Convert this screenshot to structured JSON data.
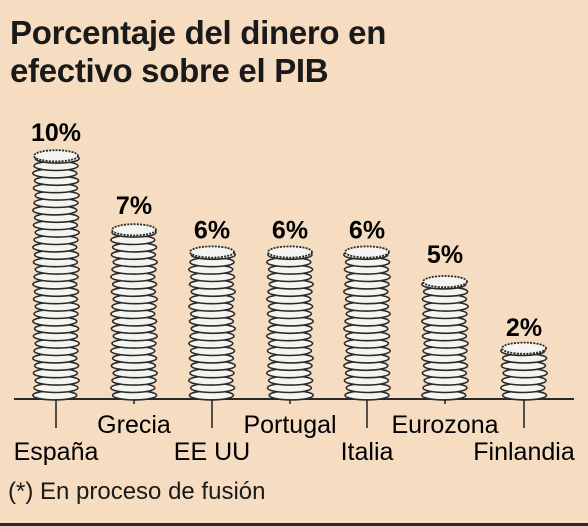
{
  "title_line1": "Porcentaje del dinero en",
  "title_line2": "efectivo sobre el PIB",
  "footnote": "(*) En proceso de fusión",
  "colors": {
    "background": "#f6dcc0",
    "coin_fill": "#f4f4f0",
    "coin_stroke": "#2a2a2a"
  },
  "chart_data": {
    "type": "bar",
    "categories": [
      "España",
      "Grecia",
      "EE UU",
      "Portugal",
      "Italia",
      "Eurozona",
      "Finlandia"
    ],
    "values": [
      10,
      7,
      6,
      6,
      6,
      5,
      2
    ],
    "value_labels": [
      "10%",
      "7%",
      "6%",
      "6%",
      "6%",
      "5%",
      "2%"
    ],
    "ylim": [
      0,
      10
    ],
    "grid": false,
    "legend": "none",
    "mark_style": "coin stacks"
  }
}
